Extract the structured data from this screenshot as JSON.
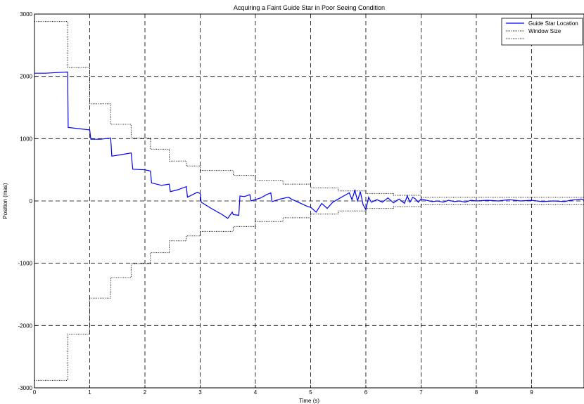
{
  "chart_data": {
    "type": "line",
    "title": "Acquiring a Faint Guide Star in Poor Seeing Condition",
    "xlabel": "Time (s)",
    "ylabel": "Position (mas)",
    "xlim": [
      0,
      9.95
    ],
    "ylim": [
      -3000,
      3000
    ],
    "xticks": [
      0,
      1,
      2,
      3,
      4,
      5,
      6,
      7,
      8,
      9
    ],
    "yticks": [
      -3000,
      -2000,
      -1000,
      0,
      1000,
      2000,
      3000
    ],
    "grid": true,
    "legend": {
      "position": "top-right",
      "entries": [
        "Guide Star Location",
        "Window Size",
        ""
      ]
    },
    "series": [
      {
        "name": "Guide Star Location",
        "style": "solid",
        "color": "#0000ff",
        "x": [
          0,
          0.2,
          0.4,
          0.6,
          0.61,
          0.8,
          1.0,
          1.02,
          1.2,
          1.38,
          1.4,
          1.55,
          1.75,
          1.78,
          2.0,
          2.1,
          2.12,
          2.3,
          2.44,
          2.46,
          2.6,
          2.75,
          2.77,
          2.95,
          3.0,
          3.02,
          3.2,
          3.4,
          3.5,
          3.58,
          3.6,
          3.7,
          3.72,
          3.8,
          3.9,
          3.92,
          4.1,
          4.2,
          4.28,
          4.3,
          4.45,
          4.6,
          4.65,
          4.8,
          4.95,
          5.0,
          5.1,
          5.2,
          5.3,
          5.4,
          5.5,
          5.6,
          5.7,
          5.75,
          5.8,
          5.85,
          5.9,
          5.95,
          6.0,
          6.05,
          6.1,
          6.2,
          6.3,
          6.4,
          6.5,
          6.6,
          6.7,
          6.75,
          6.8,
          6.85,
          6.9,
          6.95,
          7.0,
          7.1,
          7.2,
          7.3,
          7.4,
          7.5,
          7.6,
          7.7,
          7.8,
          7.9,
          8.0,
          8.2,
          8.4,
          8.6,
          8.8,
          9.0,
          9.2,
          9.4,
          9.6,
          9.7,
          9.8,
          9.9,
          9.95
        ],
        "y": [
          2050,
          2050,
          2060,
          2070,
          1180,
          1160,
          1140,
          990,
          990,
          1010,
          720,
          740,
          770,
          510,
          500,
          480,
          290,
          250,
          270,
          150,
          180,
          230,
          60,
          140,
          120,
          -20,
          -120,
          -220,
          -280,
          -180,
          -220,
          -230,
          80,
          70,
          100,
          0,
          50,
          100,
          130,
          -10,
          30,
          60,
          30,
          -30,
          -90,
          -100,
          -180,
          -40,
          -120,
          -20,
          30,
          80,
          130,
          20,
          170,
          0,
          150,
          -60,
          -140,
          60,
          -20,
          20,
          -20,
          50,
          -30,
          30,
          -40,
          80,
          -20,
          60,
          30,
          -20,
          30,
          10,
          -10,
          0,
          -20,
          10,
          -10,
          0,
          -20,
          10,
          0,
          10,
          0,
          20,
          0,
          10,
          -10,
          0,
          -10,
          10,
          20,
          30,
          10
        ]
      },
      {
        "name": "Window Size",
        "style": "dotted",
        "color": "#000000",
        "x": [
          0,
          0.6,
          0.6,
          1.0,
          1.0,
          1.38,
          1.38,
          1.75,
          1.75,
          2.1,
          2.1,
          2.44,
          2.44,
          2.75,
          2.75,
          3.0,
          3.0,
          3.6,
          3.6,
          4.0,
          4.0,
          4.5,
          4.5,
          5.0,
          5.0,
          5.5,
          5.5,
          6.0,
          6.0,
          6.5,
          6.5,
          7.0,
          7.0,
          9.95
        ],
        "y": [
          2880,
          2880,
          2140,
          2140,
          1560,
          1560,
          1230,
          1230,
          1010,
          1010,
          830,
          830,
          640,
          640,
          560,
          560,
          490,
          490,
          410,
          410,
          330,
          330,
          270,
          270,
          210,
          210,
          160,
          160,
          120,
          120,
          90,
          90,
          60,
          60
        ]
      },
      {
        "name": "",
        "style": "dotted",
        "color": "#000000",
        "x": [
          0,
          0.6,
          0.6,
          1.0,
          1.0,
          1.38,
          1.38,
          1.75,
          1.75,
          2.1,
          2.1,
          2.44,
          2.44,
          2.75,
          2.75,
          3.0,
          3.0,
          3.6,
          3.6,
          4.0,
          4.0,
          4.5,
          4.5,
          5.0,
          5.0,
          5.5,
          5.5,
          6.0,
          6.0,
          6.5,
          6.5,
          7.0,
          7.0,
          9.95
        ],
        "y": [
          -2880,
          -2880,
          -2140,
          -2140,
          -1560,
          -1560,
          -1230,
          -1230,
          -1010,
          -1010,
          -830,
          -830,
          -640,
          -640,
          -560,
          -560,
          -490,
          -490,
          -410,
          -410,
          -330,
          -330,
          -270,
          -270,
          -210,
          -210,
          -160,
          -160,
          -120,
          -120,
          -90,
          -90,
          -60,
          -60
        ]
      }
    ]
  }
}
